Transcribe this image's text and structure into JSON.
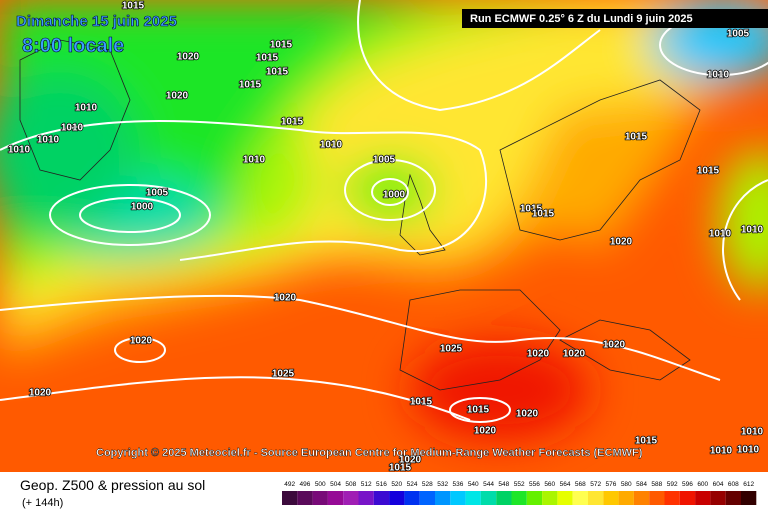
{
  "header": {
    "date": "Dimanche 15 juin 2025",
    "time": "8:00 locale",
    "run": "Run ECMWF 0.25° 6 Z du Lundi 9 juin 2025"
  },
  "copyright": "Copyright © 2025 Meteociel.fr - Source European Centre for Medium-Range Weather Forecasts (ECMWF)",
  "footer": {
    "title": "Geop. Z500 & pression au sol",
    "lead": "(+ 144h)"
  },
  "isobar_labels": [
    "1015",
    "1020",
    "1015",
    "1015",
    "1015",
    "1015",
    "1020",
    "1010",
    "1010",
    "1010",
    "1010",
    "1015",
    "1010",
    "1010",
    "1005",
    "1000",
    "1005",
    "1000",
    "1005",
    "1010",
    "1015",
    "1015",
    "1015",
    "1015",
    "1020",
    "1010",
    "1010",
    "1020",
    "1020",
    "1025",
    "1020",
    "1020",
    "1020",
    "1025",
    "1020",
    "1015",
    "1015",
    "1020",
    "1020",
    "1015",
    "1010",
    "1010",
    "1010",
    "1020",
    "1015"
  ],
  "legend": [
    {
      "value": "492",
      "color": "#3c0a3c"
    },
    {
      "value": "496",
      "color": "#5a0a5a"
    },
    {
      "value": "500",
      "color": "#780a78"
    },
    {
      "value": "504",
      "color": "#960a96"
    },
    {
      "value": "508",
      "color": "#a01eb4"
    },
    {
      "value": "512",
      "color": "#7814c8"
    },
    {
      "value": "516",
      "color": "#3c0ad2"
    },
    {
      "value": "520",
      "color": "#1400dc"
    },
    {
      "value": "524",
      "color": "#0032f0"
    },
    {
      "value": "528",
      "color": "#0064ff"
    },
    {
      "value": "532",
      "color": "#0096ff"
    },
    {
      "value": "536",
      "color": "#00c8ff"
    },
    {
      "value": "540",
      "color": "#00e6e6"
    },
    {
      "value": "544",
      "color": "#00dcaa"
    },
    {
      "value": "548",
      "color": "#00d264"
    },
    {
      "value": "552",
      "color": "#1ee628"
    },
    {
      "value": "556",
      "color": "#64f000"
    },
    {
      "value": "560",
      "color": "#aaf500"
    },
    {
      "value": "564",
      "color": "#e6ff00"
    },
    {
      "value": "568",
      "color": "#ffff50"
    },
    {
      "value": "572",
      "color": "#ffe632"
    },
    {
      "value": "576",
      "color": "#ffc800"
    },
    {
      "value": "580",
      "color": "#ffaa00"
    },
    {
      "value": "584",
      "color": "#ff8200"
    },
    {
      "value": "588",
      "color": "#ff5a00"
    },
    {
      "value": "592",
      "color": "#ff3200"
    },
    {
      "value": "596",
      "color": "#f01400"
    },
    {
      "value": "600",
      "color": "#c80000"
    },
    {
      "value": "604",
      "color": "#960000"
    },
    {
      "value": "608",
      "color": "#640000"
    },
    {
      "value": "612",
      "color": "#320000"
    }
  ]
}
